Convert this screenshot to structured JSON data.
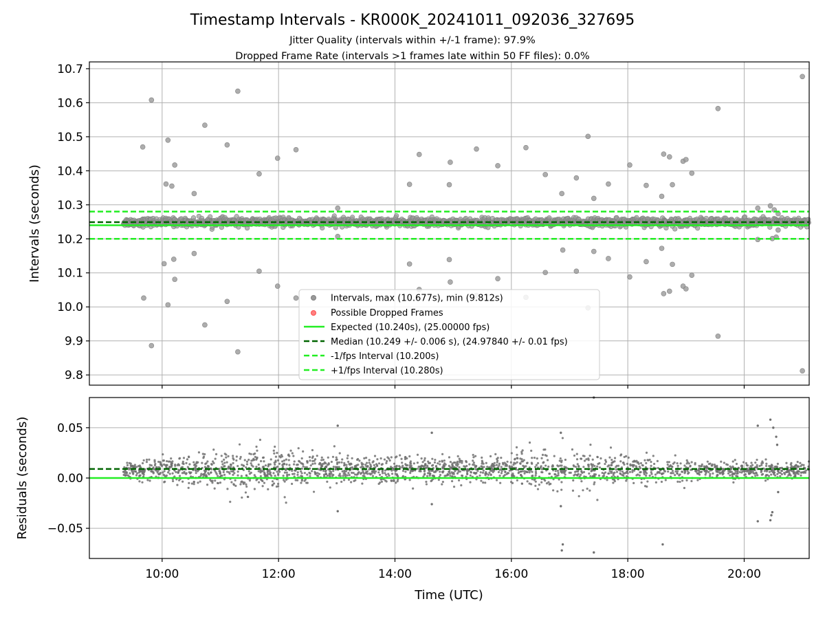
{
  "title": "Timestamp Intervals - KR000K_20241011_092036_327695",
  "subtitle_lines": [
    "Jitter Quality (intervals within +/-1 frame): 97.9%",
    "Dropped Frame Rate (intervals >1 frames late within 50 FF files): 0.0%"
  ],
  "chart_data": [
    {
      "type": "scatter",
      "panel": "intervals",
      "xlabel": "",
      "ylabel": "Intervals (seconds)",
      "xlim": [
        "08:45",
        "21:07"
      ],
      "ylim": [
        9.77,
        10.72
      ],
      "x_ticks": [
        "10:00",
        "12:00",
        "14:00",
        "16:00",
        "18:00",
        "20:00"
      ],
      "y_ticks": [
        "9.8",
        "9.9",
        "10.0",
        "10.1",
        "10.2",
        "10.3",
        "10.4",
        "10.5",
        "10.6",
        "10.7"
      ],
      "grid": true,
      "legend_position": "lower center",
      "legend": [
        "Intervals, max (10.677s), min (9.812s)",
        "Possible Dropped Frames",
        "Expected (10.240s), (25.00000 fps)",
        "Median (10.249 +/- 0.006 s), (24.97840 +/- 0.01 fps)",
        "-1/fps Interval (10.200s)",
        "+1/fps Interval (10.280s)"
      ],
      "reference_lines": {
        "expected": 10.24,
        "median": 10.249,
        "minus_interval": 10.2,
        "plus_interval": 10.28
      },
      "data_range": [
        "09:20",
        "21:07"
      ],
      "dense_band": {
        "center": 10.249,
        "spread": 0.006
      },
      "outliers": [
        [
          "09:40",
          10.47
        ],
        [
          "09:49",
          10.608
        ],
        [
          "09:41",
          10.026
        ],
        [
          "09:49",
          9.886
        ],
        [
          "10:02",
          10.127
        ],
        [
          "10:06",
          10.006
        ],
        [
          "10:06",
          10.49
        ],
        [
          "10:10",
          10.355
        ],
        [
          "10:13",
          10.417
        ],
        [
          "10:12",
          10.14
        ],
        [
          "10:13",
          10.081
        ],
        [
          "10:04",
          10.361
        ],
        [
          "10:33",
          10.333
        ],
        [
          "10:33",
          10.157
        ],
        [
          "10:44",
          10.534
        ],
        [
          "10:44",
          9.947
        ],
        [
          "11:07",
          10.476
        ],
        [
          "11:07",
          10.016
        ],
        [
          "11:18",
          10.634
        ],
        [
          "11:18",
          9.868
        ],
        [
          "11:40",
          10.391
        ],
        [
          "11:40",
          10.105
        ],
        [
          "11:59",
          10.437
        ],
        [
          "11:59",
          10.061
        ],
        [
          "12:18",
          10.462
        ],
        [
          "12:18",
          10.026
        ],
        [
          "13:01",
          10.29
        ],
        [
          "13:01",
          10.207
        ],
        [
          "14:15",
          10.36
        ],
        [
          "14:15",
          10.126
        ],
        [
          "14:25",
          10.448
        ],
        [
          "14:25",
          10.051
        ],
        [
          "14:57",
          10.425
        ],
        [
          "14:57",
          10.073
        ],
        [
          "14:56",
          10.359
        ],
        [
          "14:56",
          10.139
        ],
        [
          "15:24",
          10.464
        ],
        [
          "15:24",
          10.034
        ],
        [
          "15:46",
          10.415
        ],
        [
          "15:46",
          10.083
        ],
        [
          "16:15",
          10.468
        ],
        [
          "16:15",
          10.028
        ],
        [
          "16:35",
          10.389
        ],
        [
          "16:35",
          10.101
        ],
        [
          "16:52",
          10.333
        ],
        [
          "16:53",
          10.167
        ],
        [
          "17:07",
          10.379
        ],
        [
          "17:07",
          10.105
        ],
        [
          "17:19",
          10.501
        ],
        [
          "17:19",
          9.997
        ],
        [
          "17:25",
          10.319
        ],
        [
          "17:25",
          10.163
        ],
        [
          "17:40",
          10.361
        ],
        [
          "17:40",
          10.142
        ],
        [
          "18:02",
          10.417
        ],
        [
          "18:02",
          10.088
        ],
        [
          "18:19",
          10.357
        ],
        [
          "18:19",
          10.133
        ],
        [
          "18:35",
          10.325
        ],
        [
          "18:35",
          10.172
        ],
        [
          "18:37",
          10.449
        ],
        [
          "18:37",
          10.039
        ],
        [
          "18:43",
          10.441
        ],
        [
          "18:43",
          10.046
        ],
        [
          "18:46",
          10.359
        ],
        [
          "18:46",
          10.125
        ],
        [
          "18:57",
          10.428
        ],
        [
          "18:57",
          10.061
        ],
        [
          "19:00",
          10.433
        ],
        [
          "19:00",
          10.053
        ],
        [
          "19:06",
          10.393
        ],
        [
          "19:06",
          10.093
        ],
        [
          "19:33",
          10.583
        ],
        [
          "19:33",
          9.914
        ],
        [
          "20:14",
          10.29
        ],
        [
          "20:14",
          10.198
        ],
        [
          "20:27",
          10.297
        ],
        [
          "20:29",
          10.201
        ],
        [
          "20:31",
          10.285
        ],
        [
          "20:33",
          10.205
        ],
        [
          "20:35",
          10.226
        ],
        [
          "20:35",
          10.274
        ],
        [
          "21:00",
          10.677
        ],
        [
          "21:00",
          9.812
        ]
      ]
    },
    {
      "type": "scatter",
      "panel": "residuals",
      "xlabel": "Time (UTC)",
      "ylabel": "Residuals (seconds)",
      "xlim": [
        "08:45",
        "21:07"
      ],
      "ylim": [
        -0.08,
        0.08
      ],
      "x_ticks": [
        "10:00",
        "12:00",
        "14:00",
        "16:00",
        "18:00",
        "20:00"
      ],
      "y_ticks": [
        "−0.05",
        "0.00",
        "0.05"
      ],
      "grid": true,
      "reference_lines": {
        "expected": 0.0,
        "median": 0.009
      },
      "dense_band": {
        "center": 0.008,
        "spread_by_time": [
          [
            "09:20",
            0.004
          ],
          [
            "10:30",
            0.009
          ],
          [
            "11:40",
            0.011
          ],
          [
            "13:00",
            0.007
          ],
          [
            "14:30",
            0.006
          ],
          [
            "15:30",
            0.006
          ],
          [
            "16:30",
            0.008
          ],
          [
            "17:30",
            0.009
          ],
          [
            "18:40",
            0.007
          ],
          [
            "19:30",
            0.004
          ],
          [
            "20:30",
            0.004
          ],
          [
            "21:07",
            0.004
          ]
        ]
      },
      "outliers": [
        [
          "13:01",
          0.052
        ],
        [
          "13:01",
          -0.033
        ],
        [
          "14:38",
          0.045
        ],
        [
          "14:38",
          -0.026
        ],
        [
          "16:51",
          0.045
        ],
        [
          "16:51",
          -0.028
        ],
        [
          "16:53",
          -0.066
        ],
        [
          "16:52",
          -0.072
        ],
        [
          "17:25",
          0.08
        ],
        [
          "17:25",
          -0.074
        ],
        [
          "18:36",
          -0.066
        ],
        [
          "20:14",
          0.052
        ],
        [
          "20:14",
          -0.043
        ],
        [
          "20:27",
          0.058
        ],
        [
          "20:30",
          0.05
        ],
        [
          "20:33",
          0.041
        ],
        [
          "20:34",
          0.033
        ],
        [
          "20:35",
          -0.014
        ],
        [
          "20:29",
          -0.034
        ],
        [
          "20:28",
          -0.037
        ],
        [
          "20:27",
          -0.042
        ]
      ]
    }
  ],
  "colors": {
    "points": "#808080",
    "dropped": "#ff4d4d",
    "expected": "#22ee22",
    "median": "#006400",
    "interval": "#22ee22",
    "grid": "#b0b0b0",
    "axis": "#000000"
  }
}
